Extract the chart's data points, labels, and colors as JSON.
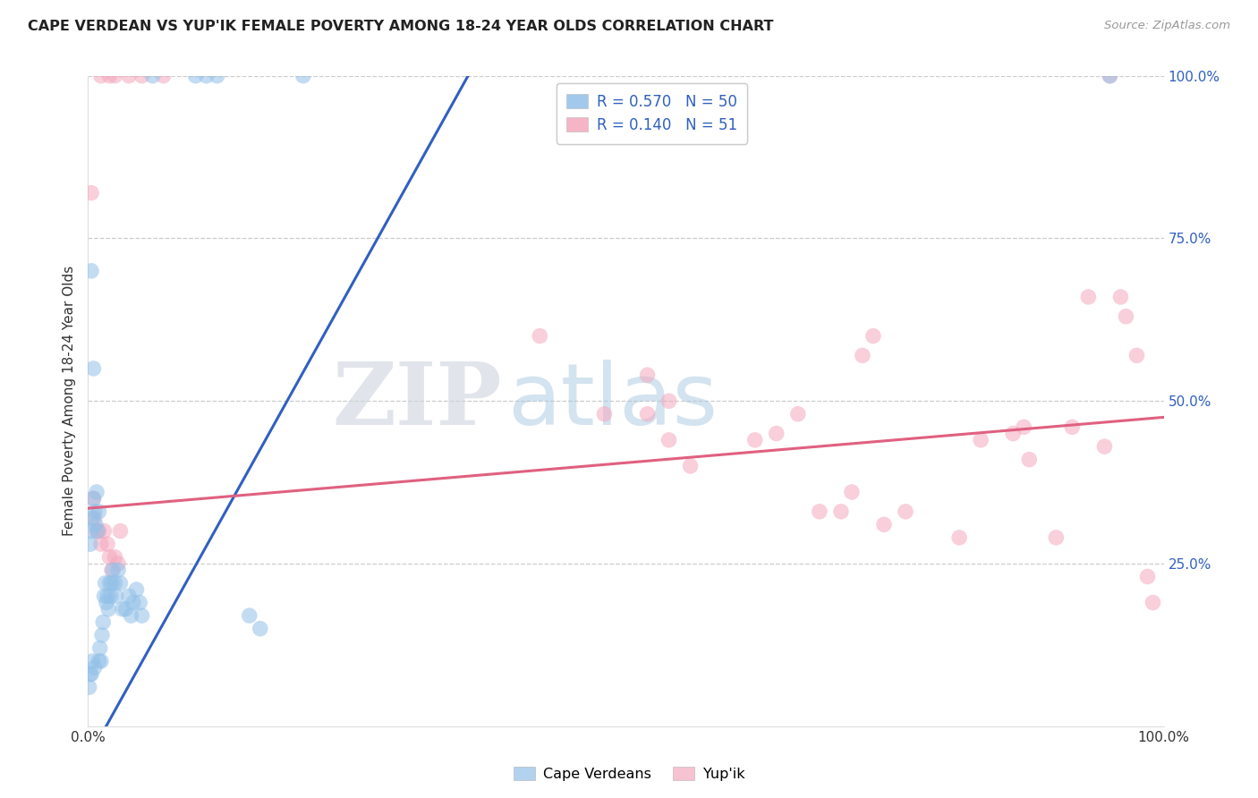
{
  "title": "CAPE VERDEAN VS YUP'IK FEMALE POVERTY AMONG 18-24 YEAR OLDS CORRELATION CHART",
  "source": "Source: ZipAtlas.com",
  "ylabel": "Female Poverty Among 18-24 Year Olds",
  "legend_blue_r": "0.570",
  "legend_blue_n": "50",
  "legend_pink_r": "0.140",
  "legend_pink_n": "51",
  "blue_color": "#92c0e8",
  "pink_color": "#f4a8be",
  "blue_line_color": "#3060c0",
  "pink_line_color": "#e06080",
  "grid_color": "#cccccc",
  "bg_color": "#ffffff",
  "title_color": "#222222",
  "source_color": "#999999",
  "ytick_color": "#3060c0",
  "xtick_color": "#333333",
  "ylabel_color": "#333333",
  "blue_scatter_x": [
    0.002,
    0.003,
    0.004,
    0.005,
    0.006,
    0.007,
    0.008,
    0.009,
    0.01,
    0.01,
    0.011,
    0.012,
    0.013,
    0.014,
    0.015,
    0.016,
    0.017,
    0.018,
    0.019,
    0.02,
    0.021,
    0.022,
    0.023,
    0.025,
    0.026,
    0.028,
    0.03,
    0.032,
    0.035,
    0.038,
    0.04,
    0.042,
    0.045,
    0.048,
    0.05,
    0.003,
    0.005,
    0.002,
    0.001,
    0.003,
    0.004,
    0.006,
    0.15,
    0.16,
    0.06,
    0.1,
    0.2,
    0.95,
    0.11,
    0.12
  ],
  "blue_scatter_y": [
    0.28,
    0.3,
    0.32,
    0.35,
    0.33,
    0.31,
    0.36,
    0.3,
    0.33,
    0.1,
    0.12,
    0.1,
    0.14,
    0.16,
    0.2,
    0.22,
    0.19,
    0.2,
    0.18,
    0.22,
    0.2,
    0.22,
    0.24,
    0.22,
    0.2,
    0.24,
    0.22,
    0.18,
    0.18,
    0.2,
    0.17,
    0.19,
    0.21,
    0.19,
    0.17,
    0.7,
    0.55,
    0.08,
    0.06,
    0.08,
    0.1,
    0.09,
    0.17,
    0.15,
    1.0,
    1.0,
    1.0,
    1.0,
    1.0,
    1.0
  ],
  "pink_scatter_x": [
    0.012,
    0.02,
    0.025,
    0.038,
    0.05,
    0.07,
    0.95,
    0.003,
    0.005,
    0.006,
    0.008,
    0.01,
    0.012,
    0.015,
    0.018,
    0.02,
    0.022,
    0.025,
    0.028,
    0.03,
    0.52,
    0.54,
    0.48,
    0.52,
    0.54,
    0.56,
    0.62,
    0.64,
    0.66,
    0.68,
    0.7,
    0.71,
    0.72,
    0.73,
    0.74,
    0.76,
    0.81,
    0.83,
    0.86,
    0.87,
    0.875,
    0.9,
    0.915,
    0.93,
    0.945,
    0.96,
    0.965,
    0.975,
    0.985,
    0.99,
    0.42
  ],
  "pink_scatter_y": [
    1.0,
    1.0,
    1.0,
    1.0,
    1.0,
    1.0,
    1.0,
    0.82,
    0.35,
    0.32,
    0.3,
    0.3,
    0.28,
    0.3,
    0.28,
    0.26,
    0.24,
    0.26,
    0.25,
    0.3,
    0.54,
    0.5,
    0.48,
    0.48,
    0.44,
    0.4,
    0.44,
    0.45,
    0.48,
    0.33,
    0.33,
    0.36,
    0.57,
    0.6,
    0.31,
    0.33,
    0.29,
    0.44,
    0.45,
    0.46,
    0.41,
    0.29,
    0.46,
    0.66,
    0.43,
    0.66,
    0.63,
    0.57,
    0.23,
    0.19,
    0.6
  ],
  "blue_line_x": [
    0.0,
    0.36
  ],
  "blue_line_y": [
    -0.05,
    1.02
  ],
  "pink_line_x": [
    0.0,
    1.0
  ],
  "pink_line_y": [
    0.335,
    0.475
  ],
  "xlim": [
    0,
    1.0
  ],
  "ylim": [
    0,
    1.0
  ],
  "yticks": [
    0.25,
    0.5,
    0.75,
    1.0
  ],
  "xticks": [
    0.0,
    1.0
  ],
  "xtick_labels": [
    "0.0%",
    "100.0%"
  ],
  "ytick_labels": [
    "25.0%",
    "50.0%",
    "75.0%",
    "100.0%"
  ]
}
